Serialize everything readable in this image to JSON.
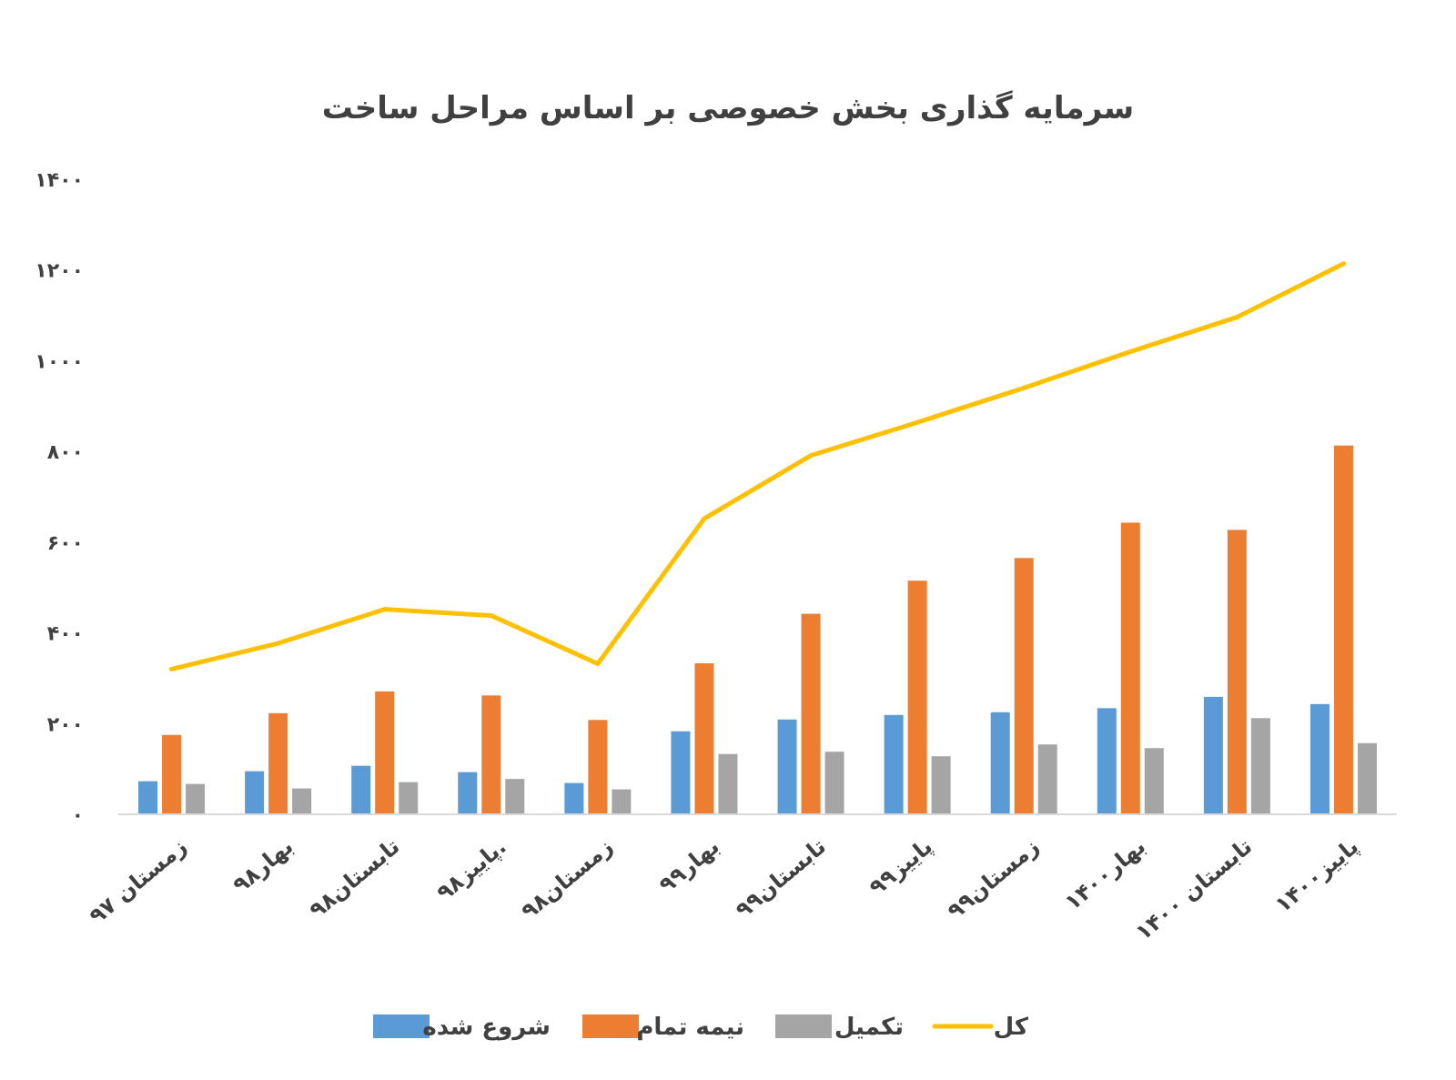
{
  "chart_data": {
    "type": "bar",
    "title": "سرمایه گذاری بخش خصوصی بر اساس مراحل ساخت",
    "xlabel": "",
    "ylabel": "",
    "ylim": [
      0,
      1400
    ],
    "yticks": [
      "۰",
      "۲۰۰",
      "۴۰۰",
      "۶۰۰",
      "۸۰۰",
      "۱۰۰۰",
      "۱۲۰۰",
      "۱۴۰۰"
    ],
    "ytick_values": [
      0,
      200,
      400,
      600,
      800,
      1000,
      1200,
      1400
    ],
    "grid": false,
    "legend_position": "bottom",
    "categories": [
      "زمستان ۹۷",
      "بهار۹۸",
      "تابستان۹۸",
      "پاییز۹۸.",
      "زمستان۹۸",
      "بهار۹۹",
      "تابستان۹۹",
      "پاییز۹۹",
      "زمستان۹۹",
      "بهار۱۴۰۰",
      "تابستان ۱۴۰۰",
      "پاییز۱۴۰۰"
    ],
    "series": [
      {
        "name": "شروع شده",
        "type": "bar",
        "color": "#5B9BD5",
        "values": [
          73,
          95,
          107,
          93,
          69,
          183,
          209,
          219,
          225,
          234,
          259,
          243
        ]
      },
      {
        "name": "نیمه تمام",
        "type": "bar",
        "color": "#ED7D31",
        "values": [
          175,
          223,
          271,
          262,
          208,
          333,
          442,
          515,
          565,
          643,
          627,
          813
        ]
      },
      {
        "name": "تکمیل",
        "type": "bar",
        "color": "#A5A5A5",
        "values": [
          67,
          57,
          71,
          78,
          55,
          133,
          138,
          128,
          154,
          146,
          212,
          157
        ]
      },
      {
        "name": "کل",
        "type": "line",
        "color": "#FFC000",
        "values": [
          320,
          377,
          452,
          438,
          332,
          652,
          791,
          864,
          940,
          1020,
          1096,
          1214
        ]
      }
    ]
  }
}
